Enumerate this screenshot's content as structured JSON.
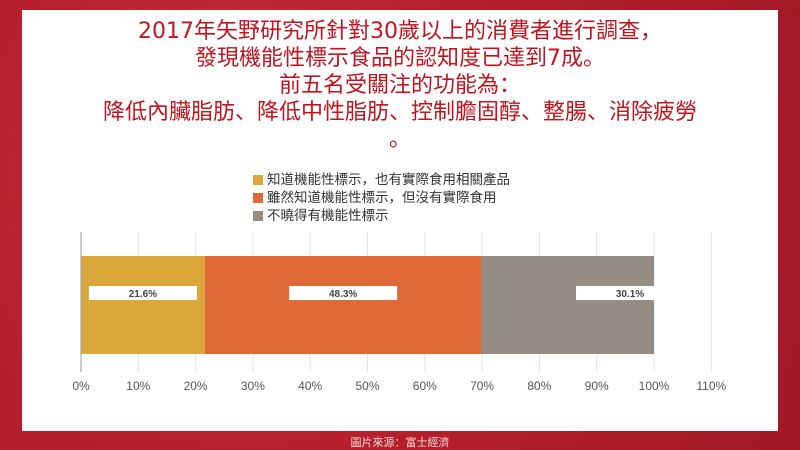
{
  "title_lines": [
    "2017年矢野研究所針對30歲以上的消費者進行調查，",
    "發現機能性標示食品的認知度已達到7成。",
    "前五名受關注的功能為：",
    "降低內臟脂肪、降低中性脂肪、控制膽固醇、整腸、消除疲勞",
    "。"
  ],
  "footer": "圖片來源：富士經濟",
  "chart_data": {
    "type": "bar",
    "orientation": "horizontal",
    "stacked": true,
    "categories": [
      ""
    ],
    "series": [
      {
        "name": "知道機能性標示，也有實際食用相關產品",
        "values": [
          21.6
        ],
        "label": "21.6%",
        "color": "#dba63a"
      },
      {
        "name": "雖然知道機能性標示，但沒有實際食用",
        "values": [
          48.3
        ],
        "label": "48.3%",
        "color": "#df6a38"
      },
      {
        "name": "不曉得有機能性標示",
        "values": [
          30.1
        ],
        "label": "30.1%",
        "color": "#958d84"
      }
    ],
    "xlim": [
      0,
      110
    ],
    "xticks": [
      "0%",
      "10%",
      "20%",
      "30%",
      "40%",
      "50%",
      "60%",
      "70%",
      "80%",
      "90%",
      "100%",
      "110%"
    ],
    "grid": true,
    "legend_position": "top"
  }
}
